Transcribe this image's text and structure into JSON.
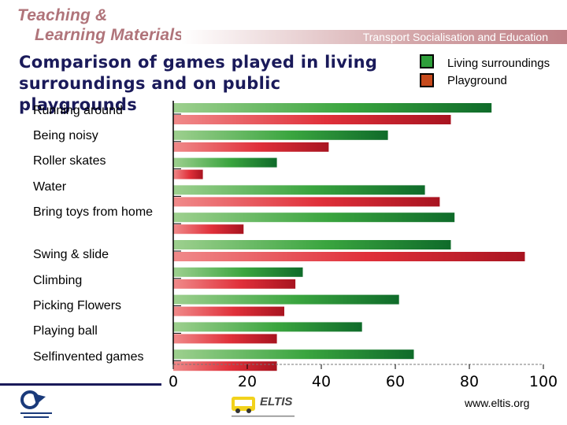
{
  "header": {
    "brand_line1": "Teaching &",
    "brand_line2": "Learning Materials",
    "strip_text": "Transport Socialisation and Education"
  },
  "footer": {
    "url": "www.eltis.org",
    "logo_text": "ELTIS"
  },
  "colors": {
    "living": "#2e9e3a",
    "playground": "#d42e3a",
    "legend_playground": "#c64a1c",
    "title": "#1a1a5a"
  },
  "chart_data": {
    "type": "bar",
    "orientation": "horizontal",
    "title": "Comparison of games played in living surroundings and on public playgrounds",
    "categories": [
      "Running around",
      "Being noisy",
      "Roller skates",
      "Water",
      "Bring toys from home",
      "Swing & slide",
      "Climbing",
      "Picking Flowers",
      "Playing ball",
      "Selfinvented games"
    ],
    "series": [
      {
        "name": "Living surroundings",
        "values": [
          86,
          58,
          28,
          68,
          76,
          75,
          35,
          61,
          51,
          65
        ]
      },
      {
        "name": "Playground",
        "values": [
          75,
          42,
          8,
          72,
          19,
          95,
          33,
          30,
          28,
          28
        ]
      }
    ],
    "xlim": [
      0,
      100
    ],
    "xticks": [
      "0",
      "20",
      "40",
      "60",
      "80",
      "100"
    ],
    "xlabel": "",
    "ylabel": "",
    "legend_position": "top-right",
    "grid": false
  }
}
